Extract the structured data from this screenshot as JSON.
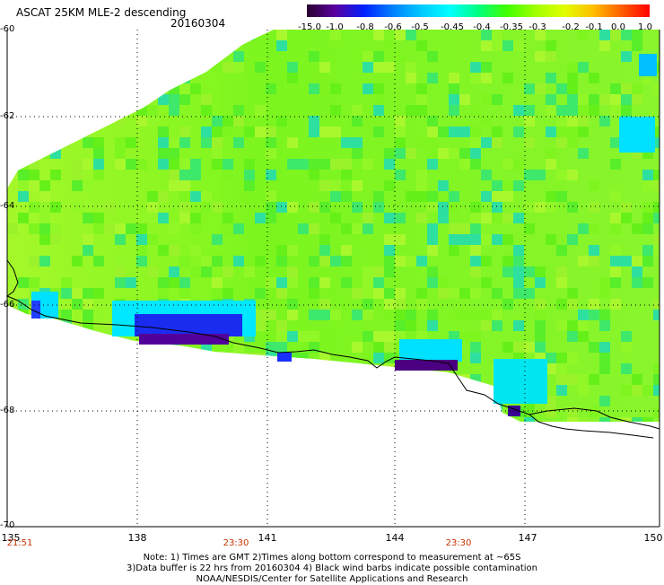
{
  "title": "ASCAT 25KM MLE-2 descending",
  "date": "20160304",
  "colorbar": {
    "labels": [
      "-15.0",
      "-1.0",
      "-0.8",
      "-0.6",
      "-0.5",
      "-0.45",
      "-0.4",
      "-0.35",
      "-0.3",
      "-0.2",
      "-0.1",
      "0.0",
      "1.0"
    ],
    "colors": [
      "#2a0030",
      "#5a00a0",
      "#0020ff",
      "#0080ff",
      "#00c8ff",
      "#00ffff",
      "#00ff80",
      "#40ff00",
      "#a0ff00",
      "#e0ff00",
      "#ffc000",
      "#ff6000",
      "#ff0000"
    ]
  },
  "axes": {
    "lat_labels": [
      "-60",
      "-62",
      "-64",
      "-66",
      "-68",
      "-70"
    ],
    "lon_labels": [
      "135",
      "138",
      "141",
      "144",
      "147",
      "150"
    ]
  },
  "time_labels": [
    "21:51",
    "23:30",
    "23:30"
  ],
  "notes": [
    "Note: 1) Times are GMT 2)Times along bottom correspond to measurement at ~65S",
    "3)Data buffer is 22 hrs from 20160304 4) Black wind barbs indicate possible contamination",
    "NOAA/NESDIS/Center for Satellite Applications and Research"
  ]
}
